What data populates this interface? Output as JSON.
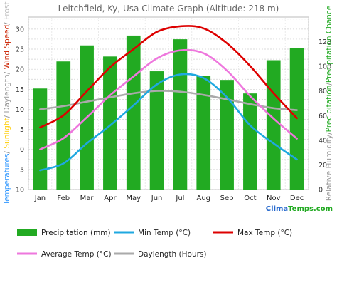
{
  "chart_data": {
    "type": "bar",
    "title": "Leitchfield, Ky, Usa Climate Graph (Altitude: 218 m)",
    "categories": [
      "Jan",
      "Feb",
      "Mar",
      "Apr",
      "May",
      "Jun",
      "Jul",
      "Aug",
      "Sep",
      "Oct",
      "Nov",
      "Dec"
    ],
    "left_axis": {
      "ylim": [
        -10,
        33
      ],
      "ticks": [
        -10,
        -5,
        0,
        5,
        10,
        15,
        20,
        25,
        30
      ],
      "title_parts": [
        {
          "text": "Temperatures",
          "color": "#3399ff"
        },
        {
          "text": "/ ",
          "color": "#888888"
        },
        {
          "text": "Sunlight",
          "color": "#ffcc00"
        },
        {
          "text": "/ ",
          "color": "#888888"
        },
        {
          "text": "Daylength",
          "color": "#999999"
        },
        {
          "text": "/ ",
          "color": "#888888"
        },
        {
          "text": "Wind Speed",
          "color": "#cc2200"
        },
        {
          "text": "/ ",
          "color": "#888888"
        },
        {
          "text": "Frost",
          "color": "#bbbbbb"
        }
      ]
    },
    "right_axis": {
      "ylim": [
        0,
        140
      ],
      "ticks": [
        0,
        20,
        40,
        60,
        80,
        100,
        120
      ],
      "title_parts": [
        {
          "text": "Relative Humidity",
          "color": "#999999"
        },
        {
          "text": "/",
          "color": "#888888"
        },
        {
          "text": "Precipitation",
          "color": "#22aa22"
        },
        {
          "text": "/",
          "color": "#888888"
        },
        {
          "text": "Precipitation Chance",
          "color": "#22aa22"
        }
      ]
    },
    "bars": {
      "name": "Precipitation (mm)",
      "axis": "right",
      "color": "#22aa22",
      "values": [
        82,
        104,
        117,
        108,
        125,
        96,
        122,
        92,
        89,
        78,
        105,
        115
      ]
    },
    "series": [
      {
        "name": "Min Temp (°C)",
        "axis": "left",
        "color": "#1fa8e0",
        "values": [
          -5.2,
          -3.5,
          1.5,
          6.0,
          11.0,
          16.2,
          18.7,
          17.8,
          13.0,
          6.0,
          1.5,
          -2.5
        ]
      },
      {
        "name": "Max Temp (°C)",
        "axis": "left",
        "color": "#dd0000",
        "values": [
          5.5,
          8.5,
          14.5,
          20.5,
          25.0,
          29.3,
          30.7,
          30.2,
          26.5,
          20.8,
          14.0,
          7.8
        ]
      },
      {
        "name": "Average Temp (°C)",
        "axis": "left",
        "color": "#ee77dd",
        "values": [
          0.0,
          2.8,
          8.0,
          13.5,
          18.2,
          22.7,
          24.7,
          24.0,
          19.7,
          13.3,
          7.7,
          2.7
        ]
      },
      {
        "name": "Daylength (Hours)",
        "axis": "left",
        "color": "#aaaaaa",
        "values": [
          10.0,
          10.8,
          11.9,
          13.0,
          14.0,
          14.6,
          14.4,
          13.6,
          12.5,
          11.3,
          10.3,
          9.8
        ]
      }
    ],
    "grid": true
  },
  "branding": {
    "text": "ClimaTemps.com"
  }
}
